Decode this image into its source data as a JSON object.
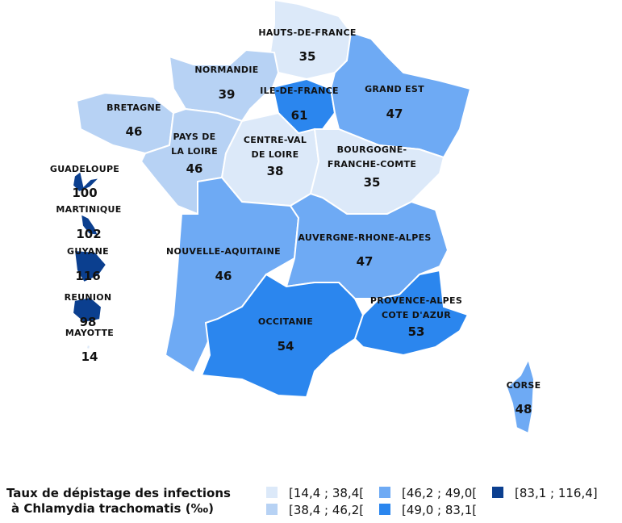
{
  "map": {
    "regions": [
      {
        "name": [
          "HAUTS-DE-FRANCE"
        ],
        "value": 35,
        "color": "#dce9f9"
      },
      {
        "name": [
          "NORMANDIE"
        ],
        "value": 39,
        "color": "#b7d2f4"
      },
      {
        "name": [
          "ILE-DE-FRANCE"
        ],
        "value": 61,
        "color": "#2b86ee"
      },
      {
        "name": [
          "GRAND EST"
        ],
        "value": 47,
        "color": "#6eaaf4"
      },
      {
        "name": [
          "BRETAGNE"
        ],
        "value": 46,
        "color": "#b7d2f4"
      },
      {
        "name": [
          "PAYS DE",
          "LA LOIRE"
        ],
        "value": 46,
        "color": "#b7d2f4"
      },
      {
        "name": [
          "CENTRE-VAL",
          "DE LOIRE"
        ],
        "value": 38,
        "color": "#dce9f9"
      },
      {
        "name": [
          "BOURGOGNE-",
          "FRANCHE-COMTE"
        ],
        "value": 35,
        "color": "#dce9f9"
      },
      {
        "name": [
          "NOUVELLE-AQUITAINE"
        ],
        "value": 46,
        "color": "#6eaaf4"
      },
      {
        "name": [
          "AUVERGNE-RHONE-ALPES"
        ],
        "value": 47,
        "color": "#6eaaf4"
      },
      {
        "name": [
          "OCCITANIE"
        ],
        "value": 54,
        "color": "#2b86ee"
      },
      {
        "name": [
          "PROVENCE-ALPES",
          "COTE D'AZUR"
        ],
        "value": 53,
        "color": "#2b86ee"
      },
      {
        "name": [
          "CORSE"
        ],
        "value": 48,
        "color": "#6eaaf4"
      },
      {
        "name": [
          "GUADELOUPE"
        ],
        "value": 100,
        "color": "#0b3f8f"
      },
      {
        "name": [
          "MARTINIQUE"
        ],
        "value": 102,
        "color": "#0b3f8f"
      },
      {
        "name": [
          "GUYANE"
        ],
        "value": 116,
        "color": "#0b3f8f"
      },
      {
        "name": [
          "REUNION"
        ],
        "value": 98,
        "color": "#0b3f8f"
      },
      {
        "name": [
          "MAYOTTE"
        ],
        "value": 14,
        "color": "#dce9f9"
      }
    ],
    "legend": {
      "title": [
        "Taux de dépistage des infections",
        "à Chlamydia trachomatis (‰)"
      ],
      "items": [
        {
          "label": "[14,4 ; 38,4[",
          "color": "#dce9f9"
        },
        {
          "label": "[38,4 ; 46,2[",
          "color": "#b7d2f4"
        },
        {
          "label": "[46,2 ; 49,0[",
          "color": "#6eaaf4"
        },
        {
          "label": "[49,0 ; 83,1[",
          "color": "#2b86ee"
        },
        {
          "label": "[83,1 ; 116,4]",
          "color": "#0b3f8f"
        }
      ]
    }
  }
}
